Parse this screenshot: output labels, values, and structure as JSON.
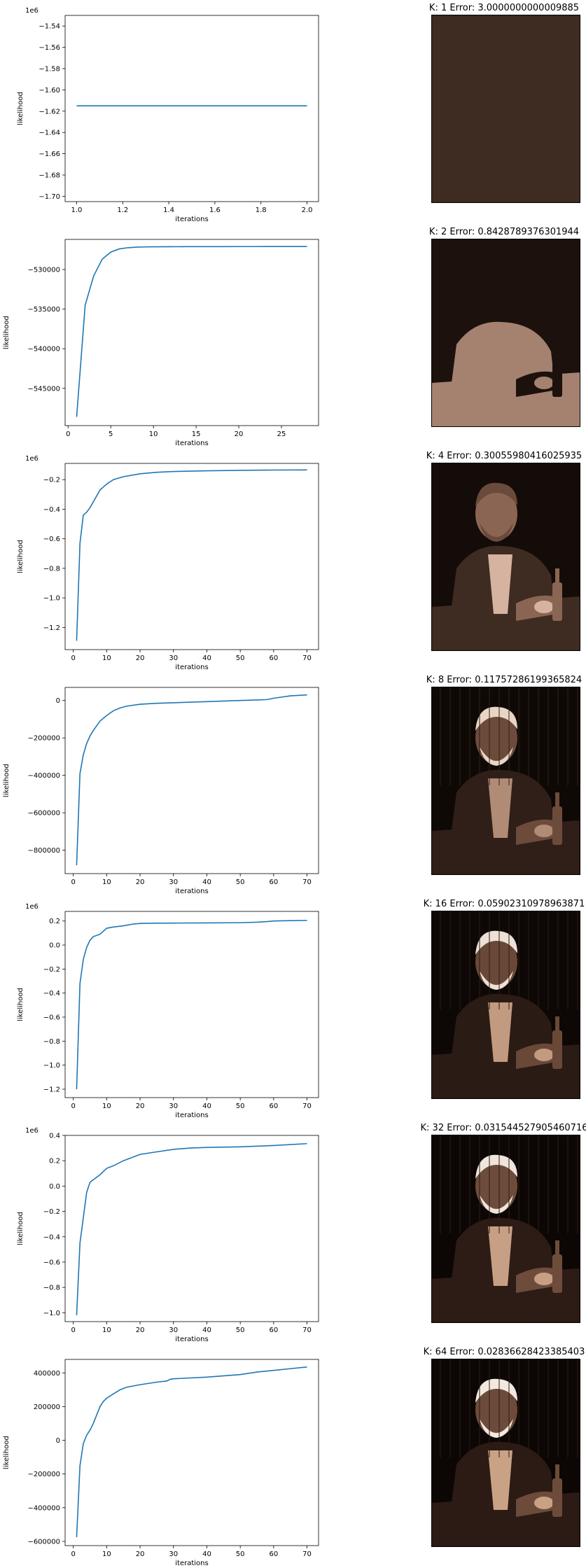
{
  "chart_data": [
    {
      "type": "line",
      "xlabel": "iterations",
      "ylabel": "likelihood",
      "offset_text": "1e6",
      "xlim": [
        0.95,
        2.05
      ],
      "ylim": [
        -1.705,
        -1.53
      ],
      "xticks": [
        1.0,
        1.2,
        1.4,
        1.6,
        1.8,
        2.0
      ],
      "xtick_labels": [
        "1.0",
        "1.2",
        "1.4",
        "1.6",
        "1.8",
        "2.0"
      ],
      "yticks": [
        -1.54,
        -1.56,
        -1.58,
        -1.6,
        -1.62,
        -1.64,
        -1.66,
        -1.68,
        -1.7
      ],
      "ytick_labels": [
        "−1.54",
        "−1.56",
        "−1.58",
        "−1.60",
        "−1.62",
        "−1.64",
        "−1.66",
        "−1.68",
        "−1.70"
      ],
      "series": [
        {
          "x": [
            1,
            2
          ],
          "y": [
            -1.615,
            -1.615
          ]
        }
      ],
      "line_color": "#1f77b4"
    },
    {
      "type": "line",
      "xlabel": "iterations",
      "ylabel": "likelihood",
      "offset_text": "",
      "xlim": [
        -0.35,
        29.35
      ],
      "ylim": [
        -549700,
        -526200
      ],
      "xticks": [
        0,
        5,
        10,
        15,
        20,
        25
      ],
      "xtick_labels": [
        "0",
        "5",
        "10",
        "15",
        "20",
        "25"
      ],
      "yticks": [
        -530000,
        -535000,
        -540000,
        -545000
      ],
      "ytick_labels": [
        "−530000",
        "−535000",
        "−540000",
        "−545000"
      ],
      "series": [
        {
          "x": [
            1,
            2,
            3,
            4,
            5,
            6,
            7,
            8,
            9,
            10,
            12,
            14,
            16,
            18,
            20,
            22,
            24,
            26,
            28
          ],
          "y": [
            -548600,
            -534500,
            -530800,
            -528700,
            -527800,
            -527400,
            -527250,
            -527180,
            -527150,
            -527130,
            -527120,
            -527115,
            -527110,
            -527108,
            -527106,
            -527105,
            -527104,
            -527103,
            -527102
          ]
        }
      ],
      "line_color": "#1f77b4"
    },
    {
      "type": "line",
      "xlabel": "iterations",
      "ylabel": "likelihood",
      "offset_text": "1e6",
      "xlim": [
        -2.45,
        73.45
      ],
      "ylim": [
        -1.35,
        -0.09
      ],
      "xticks": [
        0,
        10,
        20,
        30,
        40,
        50,
        60,
        70
      ],
      "xtick_labels": [
        "0",
        "10",
        "20",
        "30",
        "40",
        "50",
        "60",
        "70"
      ],
      "yticks": [
        -0.2,
        -0.4,
        -0.6,
        -0.8,
        -1.0,
        -1.2
      ],
      "ytick_labels": [
        "−0.2",
        "−0.4",
        "−0.6",
        "−0.8",
        "−1.0",
        "−1.2"
      ],
      "series": [
        {
          "x": [
            1,
            2,
            3,
            4,
            5,
            6,
            8,
            10,
            12,
            15,
            20,
            25,
            30,
            40,
            50,
            60,
            70
          ],
          "y": [
            -1.29,
            -0.63,
            -0.44,
            -0.42,
            -0.39,
            -0.35,
            -0.27,
            -0.23,
            -0.2,
            -0.18,
            -0.16,
            -0.15,
            -0.145,
            -0.14,
            -0.137,
            -0.135,
            -0.134
          ]
        }
      ],
      "line_color": "#1f77b4"
    },
    {
      "type": "line",
      "xlabel": "iterations",
      "ylabel": "likelihood",
      "offset_text": "",
      "xlim": [
        -2.45,
        73.45
      ],
      "ylim": [
        -925000,
        70000
      ],
      "xticks": [
        0,
        10,
        20,
        30,
        40,
        50,
        60,
        70
      ],
      "xtick_labels": [
        "0",
        "10",
        "20",
        "30",
        "40",
        "50",
        "60",
        "70"
      ],
      "yticks": [
        0,
        -200000,
        -400000,
        -600000,
        -800000
      ],
      "ytick_labels": [
        "0",
        "−200000",
        "−400000",
        "−600000",
        "−800000"
      ],
      "series": [
        {
          "x": [
            1,
            2,
            3,
            4,
            5,
            6,
            7,
            8,
            10,
            12,
            14,
            16,
            20,
            25,
            30,
            40,
            50,
            55,
            58,
            60,
            65,
            70
          ],
          "y": [
            -880000,
            -390000,
            -290000,
            -230000,
            -190000,
            -160000,
            -135000,
            -110000,
            -80000,
            -55000,
            -40000,
            -30000,
            -20000,
            -15000,
            -12000,
            -6000,
            0,
            3000,
            5000,
            12000,
            25000,
            30000
          ]
        }
      ],
      "line_color": "#1f77b4"
    },
    {
      "type": "line",
      "xlabel": "iterations",
      "ylabel": "likelihood",
      "offset_text": "1e6",
      "xlim": [
        -2.45,
        73.45
      ],
      "ylim": [
        -1.27,
        0.28
      ],
      "xticks": [
        0,
        10,
        20,
        30,
        40,
        50,
        60,
        70
      ],
      "xtick_labels": [
        "0",
        "10",
        "20",
        "30",
        "40",
        "50",
        "60",
        "70"
      ],
      "yticks": [
        0.2,
        0.0,
        -0.2,
        -0.4,
        -0.6,
        -0.8,
        -1.0,
        -1.2
      ],
      "ytick_labels": [
        "0.2",
        "0.0",
        "−0.2",
        "−0.4",
        "−0.6",
        "−0.8",
        "−1.0",
        "−1.2"
      ],
      "series": [
        {
          "x": [
            1,
            2,
            3,
            4,
            5,
            6,
            8,
            10,
            12,
            15,
            18,
            20,
            25,
            30,
            40,
            50,
            55,
            58,
            60,
            65,
            70
          ],
          "y": [
            -1.2,
            -0.32,
            -0.12,
            -0.02,
            0.04,
            0.07,
            0.09,
            0.14,
            0.15,
            0.16,
            0.175,
            0.18,
            0.182,
            0.183,
            0.184,
            0.186,
            0.19,
            0.195,
            0.2,
            0.203,
            0.205
          ]
        }
      ],
      "line_color": "#1f77b4"
    },
    {
      "type": "line",
      "xlabel": "iterations",
      "ylabel": "likelihood",
      "offset_text": "1e6",
      "xlim": [
        -2.45,
        73.45
      ],
      "ylim": [
        -1.07,
        0.4
      ],
      "xticks": [
        0,
        10,
        20,
        30,
        40,
        50,
        60,
        70
      ],
      "xtick_labels": [
        "0",
        "10",
        "20",
        "30",
        "40",
        "50",
        "60",
        "70"
      ],
      "yticks": [
        0.4,
        0.2,
        0.0,
        -0.2,
        -0.4,
        -0.6,
        -0.8,
        -1.0
      ],
      "ytick_labels": [
        "0.4",
        "0.2",
        "0.0",
        "−0.2",
        "−0.4",
        "−0.6",
        "−0.8",
        "−1.0"
      ],
      "series": [
        {
          "x": [
            1,
            2,
            3,
            4,
            5,
            6,
            8,
            10,
            12,
            15,
            18,
            20,
            25,
            30,
            35,
            40,
            50,
            60,
            70
          ],
          "y": [
            -1.02,
            -0.45,
            -0.25,
            -0.05,
            0.03,
            0.05,
            0.09,
            0.14,
            0.16,
            0.2,
            0.23,
            0.25,
            0.27,
            0.29,
            0.3,
            0.305,
            0.31,
            0.32,
            0.335
          ]
        }
      ],
      "line_color": "#1f77b4"
    },
    {
      "type": "line",
      "xlabel": "iterations",
      "ylabel": "likelihood",
      "offset_text": "",
      "xlim": [
        -2.45,
        73.45
      ],
      "ylim": [
        -625000,
        480000
      ],
      "xticks": [
        0,
        10,
        20,
        30,
        40,
        50,
        60,
        70
      ],
      "xtick_labels": [
        "0",
        "10",
        "20",
        "30",
        "40",
        "50",
        "60",
        "70"
      ],
      "yticks": [
        400000,
        200000,
        0,
        -200000,
        -400000,
        -600000
      ],
      "ytick_labels": [
        "400000",
        "200000",
        "0",
        "−200000",
        "−400000",
        "−600000"
      ],
      "series": [
        {
          "x": [
            1,
            2,
            3,
            4,
            5,
            6,
            7,
            8,
            9,
            10,
            12,
            14,
            16,
            20,
            25,
            28,
            29,
            30,
            40,
            50,
            55,
            60,
            65,
            70
          ],
          "y": [
            -575000,
            -150000,
            -20000,
            30000,
            60000,
            100000,
            150000,
            200000,
            230000,
            250000,
            275000,
            300000,
            315000,
            330000,
            345000,
            352000,
            362000,
            365000,
            375000,
            390000,
            405000,
            415000,
            425000,
            435000
          ]
        }
      ],
      "line_color": "#1f77b4"
    }
  ],
  "panels": [
    {
      "title": "K: 1 Error: 3.0000000000009885",
      "palette": [
        "#3e2b22",
        "#3e2b22",
        "#3e2b22",
        "#3e2b22",
        "#3e2b22"
      ]
    },
    {
      "title": "K: 2 Error: 0.8428789376301944",
      "palette": [
        "#1c110d",
        "#a4826f",
        "#1c110d",
        "#a4826f",
        "#1c110d"
      ]
    },
    {
      "title": "K: 4 Error: 0.30055980416025935",
      "palette": [
        "#140c08",
        "#3e2b22",
        "#8a6553",
        "#d5b3a0",
        "#6a4a3a"
      ]
    },
    {
      "title": "K: 8 Error: 0.11757286199365824",
      "palette": [
        "#0f0906",
        "#2f1f18",
        "#6d4b3b",
        "#b08b76",
        "#e8d5c6"
      ]
    },
    {
      "title": "K: 16 Error: 0.05902310978963871",
      "palette": [
        "#0d0806",
        "#2a1b14",
        "#6a4838",
        "#c29a80",
        "#ede0d6"
      ]
    },
    {
      "title": "K: 32 Error: 0.031544527905460716",
      "palette": [
        "#0c0705",
        "#2c1c15",
        "#6e4c3c",
        "#c79f84",
        "#f0e5dc"
      ]
    },
    {
      "title": "K: 64 Error: 0.02836628423385403",
      "palette": [
        "#0c0705",
        "#2b1b14",
        "#6d4b3a",
        "#c9a286",
        "#f2e8e0"
      ]
    }
  ]
}
